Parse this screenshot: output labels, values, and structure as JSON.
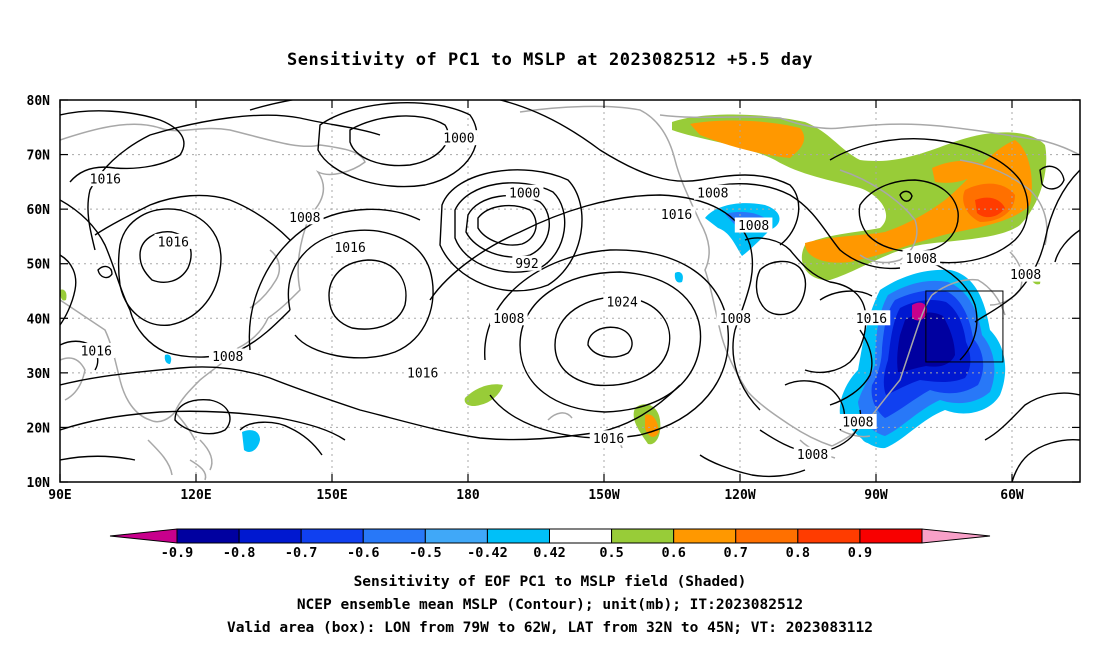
{
  "title": "Sensitivity of PC1 to MSLP at 2023082512 +5.5 day",
  "lat_labels": [
    "80N",
    "70N",
    "60N",
    "50N",
    "40N",
    "30N",
    "20N",
    "10N"
  ],
  "lon_labels": [
    "90E",
    "120E",
    "150E",
    "180",
    "150W",
    "120W",
    "90W",
    "60W"
  ],
  "contour_labels": [
    {
      "text": "1000",
      "lon": 178,
      "lat": 73
    },
    {
      "text": "1016",
      "lon": 100,
      "lat": 65.5
    },
    {
      "text": "1016",
      "lon": 115,
      "lat": 54
    },
    {
      "text": "1008",
      "lon": 144,
      "lat": 58.5
    },
    {
      "text": "1016",
      "lon": 154,
      "lat": 53
    },
    {
      "text": "1000",
      "lon": 192.5,
      "lat": 63
    },
    {
      "text": "992",
      "lon": 193,
      "lat": 50
    },
    {
      "text": "1008",
      "lon": 234,
      "lat": 63
    },
    {
      "text": "1016",
      "lon": 226,
      "lat": 59
    },
    {
      "text": "1008",
      "lon": 243,
      "lat": 57
    },
    {
      "text": "1008",
      "lon": 280,
      "lat": 51
    },
    {
      "text": "1008",
      "lon": 303,
      "lat": 48
    },
    {
      "text": "1024",
      "lon": 214,
      "lat": 43
    },
    {
      "text": "1008",
      "lon": 189,
      "lat": 40
    },
    {
      "text": "1008",
      "lon": 239,
      "lat": 40
    },
    {
      "text": "1016",
      "lon": 269,
      "lat": 40
    },
    {
      "text": "1016",
      "lon": 98,
      "lat": 34
    },
    {
      "text": "1008",
      "lon": 127,
      "lat": 33
    },
    {
      "text": "1016",
      "lon": 170,
      "lat": 30
    },
    {
      "text": "1008",
      "lon": 266,
      "lat": 21
    },
    {
      "text": "1016",
      "lon": 211,
      "lat": 18
    },
    {
      "text": "1008",
      "lon": 256,
      "lat": 15
    }
  ],
  "colorbar": {
    "labels": [
      "-0.9",
      "-0.8",
      "-0.7",
      "-0.6",
      "-0.5",
      "-0.42",
      "0.42",
      "0.5",
      "0.6",
      "0.7",
      "0.8",
      "0.9"
    ],
    "colors": [
      "#c8008c",
      "#0000a0",
      "#0018d0",
      "#1040f0",
      "#2878f8",
      "#40a8f8",
      "#00c0f8",
      "#ffffff",
      "#98cc38",
      "#ff9800",
      "#ff7000",
      "#ff3c00",
      "#f80000",
      "#f8a0c8"
    ]
  },
  "caption": {
    "line1": "Sensitivity of EOF PC1 to MSLP field (Shaded)",
    "line2": "NCEP ensemble mean MSLP (Contour); unit(mb); IT:2023082512",
    "line3": "Valid area (box): LON from 79W to 62W, LAT from 32N to 45N; VT: 2023083112"
  },
  "valid_box": {
    "lon_min": 281,
    "lon_max": 298,
    "lat_min": 32,
    "lat_max": 45
  }
}
